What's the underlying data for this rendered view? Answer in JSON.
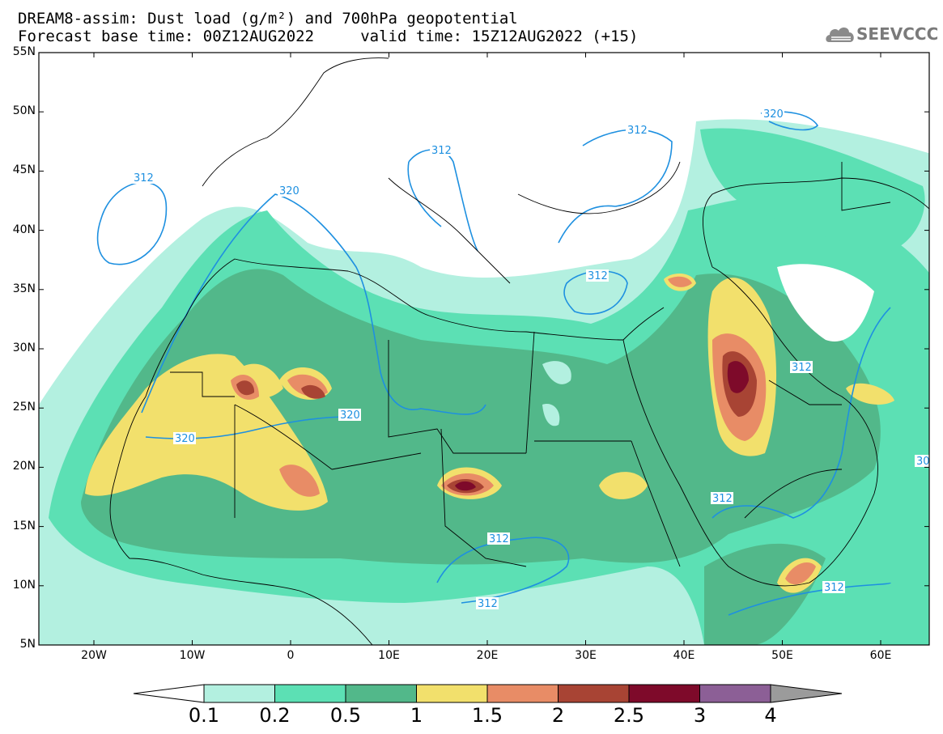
{
  "title": {
    "line1": "DREAM8-assim: Dust load (g/m²) and 700hPa geopotential",
    "line2": "Forecast base time: 00Z12AUG2022     valid time: 15Z12AUG2022 (+15)"
  },
  "logo": {
    "text": "SEEVCCC",
    "icon": "cloud-icon"
  },
  "map": {
    "lat_labels": [
      "55N",
      "50N",
      "45N",
      "40N",
      "35N",
      "30N",
      "25N",
      "20N",
      "15N",
      "10N",
      "5N"
    ],
    "lon_labels": [
      "20W",
      "10W",
      "0",
      "10E",
      "20E",
      "30E",
      "40E",
      "50E",
      "60E"
    ],
    "contour_labels": [
      "312",
      "320",
      "312",
      "320",
      "312",
      "312",
      "320",
      "320",
      "312",
      "312",
      "312",
      "312",
      "312",
      "30"
    ],
    "colors": {
      "land": "#ffffff",
      "border": "#000000",
      "contour": "#1e90e0"
    }
  },
  "colorbar": {
    "labels": [
      "0.1",
      "0.2",
      "0.5",
      "1",
      "1.5",
      "2",
      "2.5",
      "3",
      "4"
    ],
    "colors": [
      "#b3f0e0",
      "#5ce0b4",
      "#52b88a",
      "#f2e06c",
      "#e88c66",
      "#a84434",
      "#7e0a2a",
      "#8c5f96",
      "#9b9b9b"
    ],
    "under_color": "#ffffff",
    "over_color": "#9b9b9b"
  }
}
